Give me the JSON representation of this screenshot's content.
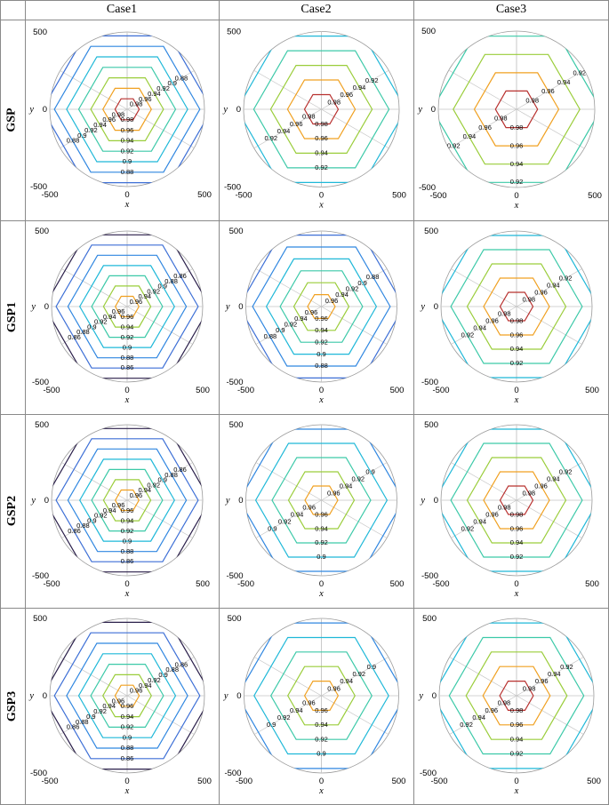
{
  "columns": [
    "Case1",
    "Case2",
    "Case3"
  ],
  "rows": [
    "GSP",
    "GSP1",
    "GSP2",
    "GSP3"
  ],
  "chart_data": {
    "type": "contour",
    "xlabel": "x",
    "ylabel": "y",
    "xlim": [
      -500,
      500
    ],
    "ylim": [
      -500,
      500
    ],
    "xticks": [
      -500,
      0,
      500
    ],
    "yticks": [
      -500,
      0,
      500
    ],
    "polar_grid": "hexagonal",
    "panels": [
      {
        "row": "GSP",
        "column": "Case1",
        "levels": [
          0.86,
          0.88,
          0.9,
          0.92,
          0.94,
          0.96,
          0.98
        ]
      },
      {
        "row": "GSP",
        "column": "Case2",
        "levels": [
          0.9,
          0.92,
          0.94,
          0.96,
          0.98
        ]
      },
      {
        "row": "GSP",
        "column": "Case3",
        "levels": [
          0.92,
          0.94,
          0.96,
          0.98
        ]
      },
      {
        "row": "GSP1",
        "column": "Case1",
        "levels": [
          0.84,
          0.86,
          0.88,
          0.9,
          0.92,
          0.94,
          0.96
        ]
      },
      {
        "row": "GSP1",
        "column": "Case2",
        "levels": [
          0.86,
          0.88,
          0.9,
          0.92,
          0.94,
          0.96
        ]
      },
      {
        "row": "GSP1",
        "column": "Case3",
        "levels": [
          0.9,
          0.92,
          0.94,
          0.96,
          0.98
        ]
      },
      {
        "row": "GSP2",
        "column": "Case1",
        "levels": [
          0.84,
          0.86,
          0.88,
          0.9,
          0.92,
          0.94,
          0.96
        ]
      },
      {
        "row": "GSP2",
        "column": "Case2",
        "levels": [
          0.88,
          0.9,
          0.92,
          0.94,
          0.96
        ]
      },
      {
        "row": "GSP2",
        "column": "Case3",
        "levels": [
          0.9,
          0.92,
          0.94,
          0.96,
          0.98
        ]
      },
      {
        "row": "GSP3",
        "column": "Case1",
        "levels": [
          0.84,
          0.86,
          0.88,
          0.9,
          0.92,
          0.94,
          0.96
        ]
      },
      {
        "row": "GSP3",
        "column": "Case2",
        "levels": [
          0.88,
          0.9,
          0.92,
          0.94,
          0.96
        ]
      },
      {
        "row": "GSP3",
        "column": "Case3",
        "levels": [
          0.9,
          0.92,
          0.94,
          0.96,
          0.98
        ]
      }
    ]
  },
  "colors": {
    "0.84": "#2a1f4a",
    "0.86": "#3d6fd6",
    "0.88": "#2f86e0",
    "0.9": "#1fb8d8",
    "0.92": "#3cc9a8",
    "0.94": "#9acd3a",
    "0.96": "#f0a020",
    "0.98": "#b8312f"
  }
}
